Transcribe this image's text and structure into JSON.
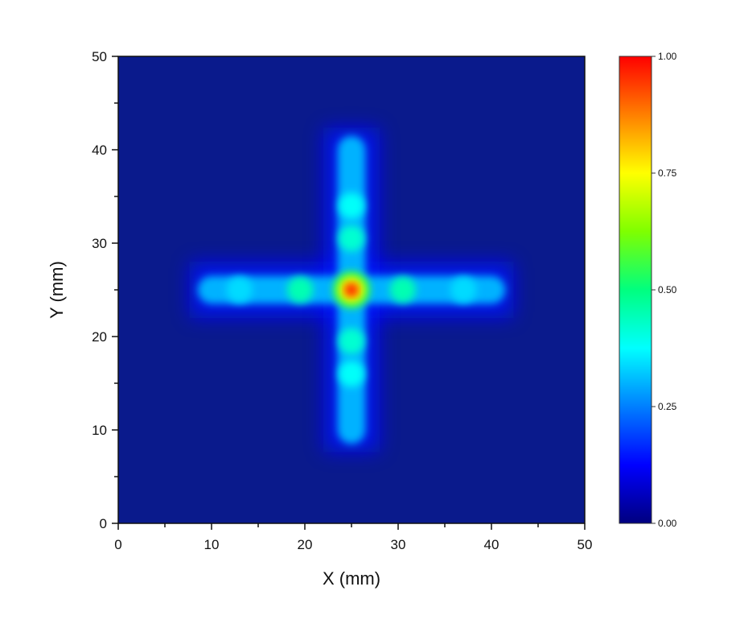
{
  "chart_data": {
    "type": "heatmap",
    "xlabel": "X (mm)",
    "ylabel": "Y (mm)",
    "xlim": [
      0,
      50
    ],
    "ylim": [
      0,
      50
    ],
    "xticks": [
      "0",
      "10",
      "20",
      "30",
      "40",
      "50"
    ],
    "yticks": [
      "0",
      "10",
      "20",
      "30",
      "40",
      "50"
    ],
    "colorbar": {
      "range": [
        0,
        1
      ],
      "ticks": [
        "0.00",
        "0.25",
        "0.50",
        "0.75",
        "1.00"
      ],
      "colormap": [
        "#00007f",
        "#0000ff",
        "#007fff",
        "#00ffff",
        "#00ff7f",
        "#7fff00",
        "#ffff00",
        "#ff7f00",
        "#ff0000"
      ]
    },
    "background_color": "#0a1a8c",
    "features": {
      "horizontal_arm": {
        "y": 25,
        "x_range": [
          8.5,
          41.5
        ],
        "intensity": 0.3
      },
      "vertical_arm": {
        "x": 25,
        "y_range": [
          8.5,
          41.5
        ],
        "intensity": 0.3
      },
      "center_peak": {
        "x": 25,
        "y": 25,
        "intensity": 1.0
      },
      "bright_spots": [
        {
          "x": 19.5,
          "y": 25,
          "intensity": 0.45
        },
        {
          "x": 30.5,
          "y": 25,
          "intensity": 0.45
        },
        {
          "x": 25,
          "y": 30.5,
          "intensity": 0.42
        },
        {
          "x": 25,
          "y": 19.5,
          "intensity": 0.42
        },
        {
          "x": 25,
          "y": 34,
          "intensity": 0.38
        },
        {
          "x": 25,
          "y": 16,
          "intensity": 0.38
        },
        {
          "x": 13,
          "y": 25,
          "intensity": 0.34
        },
        {
          "x": 37,
          "y": 25,
          "intensity": 0.34
        }
      ]
    }
  }
}
